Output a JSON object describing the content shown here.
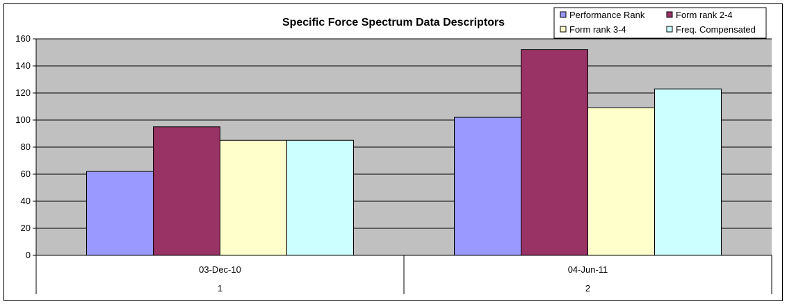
{
  "chart_data": {
    "type": "bar",
    "title": "Specific Force Spectrum Data Descriptors",
    "xlabel": "",
    "ylabel": "",
    "ylim": [
      0,
      160
    ],
    "y_ticks": [
      "0",
      "20",
      "40",
      "60",
      "80",
      "100",
      "120",
      "140",
      "160"
    ],
    "categories": [
      {
        "label": "03-Dec-10",
        "sublabel": "1"
      },
      {
        "label": "04-Jun-11",
        "sublabel": "2"
      }
    ],
    "series": [
      {
        "name": "Performance Rank",
        "color": "#9999ff",
        "values": [
          62,
          102
        ]
      },
      {
        "name": "Form rank 2-4",
        "color": "#993366",
        "values": [
          95,
          152
        ]
      },
      {
        "name": "Form rank 3-4",
        "color": "#ffffcc",
        "values": [
          85,
          109
        ]
      },
      {
        "name": "Freq. Compensated",
        "color": "#ccffff",
        "values": [
          85,
          123
        ]
      }
    ],
    "grid": true,
    "plot_background": "#c0c0c0",
    "legend_position": "top-right"
  }
}
